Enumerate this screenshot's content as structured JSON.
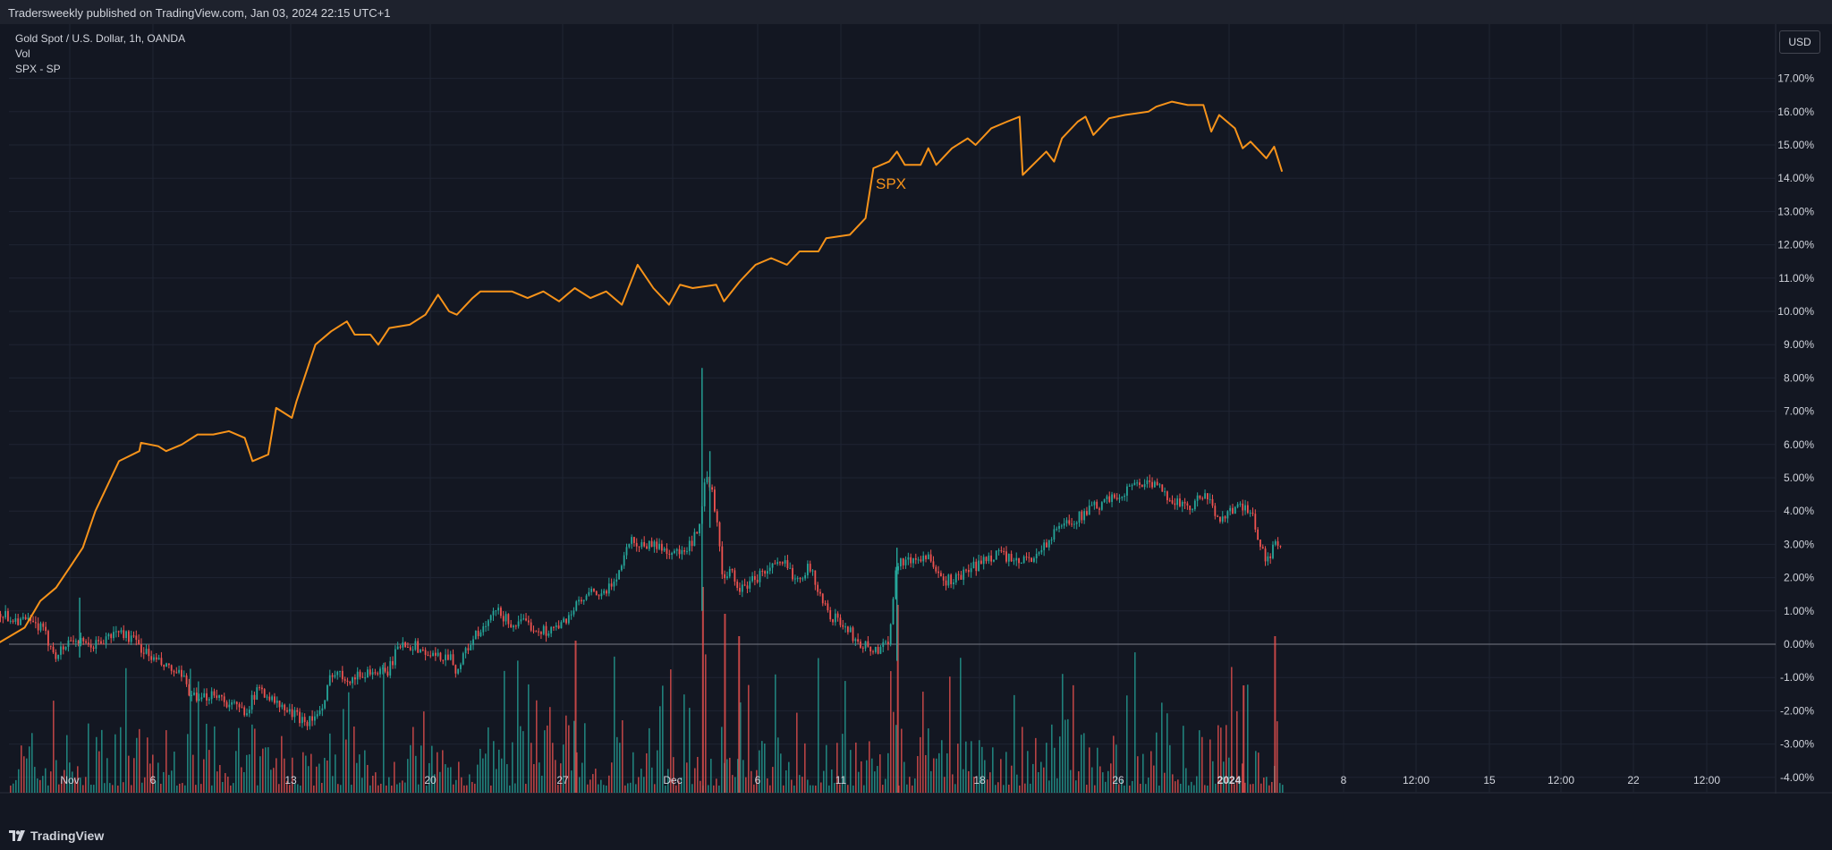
{
  "header": {
    "published": "Tradersweekly published on TradingView.com, Jan 03, 2024 22:15 UTC+1"
  },
  "legend": {
    "symbol": "Gold Spot / U.S. Dollar, 1h, OANDA",
    "volume": "Vol",
    "compare": "SPX - SP"
  },
  "currency_button": "USD",
  "brand": {
    "name": "TradingView",
    "icon": "tradingview-logo-icon"
  },
  "colors": {
    "background": "#131722",
    "spx": "#f7931a",
    "up": "#26a69a",
    "down": "#ef5350",
    "grid": "#1f2433",
    "axis_text": "#d1d4dc"
  },
  "chart_data": {
    "type": "line",
    "title": "Gold Spot / U.S. Dollar, 1h, OANDA",
    "xlabel": "",
    "ylabel": "",
    "ylim": [
      -4.5,
      17.5
    ],
    "y_ticks": [
      "17.00%",
      "16.00%",
      "15.00%",
      "14.00%",
      "13.00%",
      "12.00%",
      "11.00%",
      "10.00%",
      "9.00%",
      "8.00%",
      "7.00%",
      "6.00%",
      "5.00%",
      "4.00%",
      "3.00%",
      "2.00%",
      "1.00%",
      "0.00%",
      "-1.00%",
      "-2.00%",
      "-3.00%",
      "-4.00%"
    ],
    "x_ticks": [
      "Nov",
      "6",
      "13",
      "20",
      "27",
      "Dec",
      "6",
      "11",
      "18",
      "26",
      "2024",
      "8",
      "12:00",
      "15",
      "12:00",
      "22",
      "12:00"
    ],
    "annotations": [
      "SPX"
    ],
    "series": [
      {
        "name": "SPX",
        "style": "line",
        "points": [
          [
            -1.5,
            -0.2
          ],
          [
            1.0,
            0.5
          ],
          [
            2.0,
            1.3
          ],
          [
            3.0,
            1.7
          ],
          [
            4.0,
            2.4
          ],
          [
            4.7,
            2.9
          ],
          [
            5.5,
            4.0
          ],
          [
            7.0,
            5.5
          ],
          [
            8.3,
            5.8
          ],
          [
            8.4,
            6.05
          ],
          [
            9.5,
            5.95
          ],
          [
            10.0,
            5.8
          ],
          [
            11.0,
            6.0
          ],
          [
            12.0,
            6.3
          ],
          [
            13.0,
            6.3
          ],
          [
            14.0,
            6.4
          ],
          [
            15.0,
            6.2
          ],
          [
            15.5,
            5.5
          ],
          [
            16.5,
            5.7
          ],
          [
            17.0,
            7.1
          ],
          [
            18.0,
            6.8
          ],
          [
            18.3,
            7.3
          ],
          [
            19.5,
            9.0
          ],
          [
            20.5,
            9.4
          ],
          [
            21.5,
            9.7
          ],
          [
            22.0,
            9.3
          ],
          [
            23.0,
            9.3
          ],
          [
            23.5,
            9.0
          ],
          [
            24.2,
            9.5
          ],
          [
            25.5,
            9.6
          ],
          [
            26.5,
            9.9
          ],
          [
            27.3,
            10.5
          ],
          [
            28.0,
            10.0
          ],
          [
            28.5,
            9.9
          ],
          [
            29.5,
            10.4
          ],
          [
            30.0,
            10.6
          ],
          [
            31.0,
            10.6
          ],
          [
            32.0,
            10.6
          ],
          [
            33.0,
            10.4
          ],
          [
            34.0,
            10.6
          ],
          [
            35.0,
            10.3
          ],
          [
            36.0,
            10.7
          ],
          [
            37.0,
            10.4
          ],
          [
            38.0,
            10.6
          ],
          [
            39.0,
            10.2
          ],
          [
            40.0,
            11.4
          ],
          [
            41.0,
            10.7
          ],
          [
            42.0,
            10.2
          ],
          [
            42.7,
            10.8
          ],
          [
            43.5,
            10.7
          ],
          [
            45.0,
            10.8
          ],
          [
            45.5,
            10.3
          ],
          [
            46.5,
            10.9
          ],
          [
            47.5,
            11.4
          ],
          [
            48.5,
            11.6
          ],
          [
            49.5,
            11.4
          ],
          [
            50.3,
            11.8
          ],
          [
            51.5,
            11.8
          ],
          [
            52.0,
            12.2
          ],
          [
            53.5,
            12.3
          ],
          [
            54.5,
            12.8
          ],
          [
            55.0,
            14.3
          ],
          [
            56.0,
            14.5
          ],
          [
            56.5,
            14.8
          ],
          [
            57.0,
            14.4
          ],
          [
            58.0,
            14.4
          ],
          [
            58.5,
            14.9
          ],
          [
            59.0,
            14.4
          ],
          [
            60.0,
            14.9
          ],
          [
            61.0,
            15.2
          ],
          [
            61.5,
            15.0
          ],
          [
            62.5,
            15.5
          ],
          [
            63.5,
            15.7
          ],
          [
            64.3,
            15.85
          ],
          [
            64.5,
            14.1
          ],
          [
            66.0,
            14.8
          ],
          [
            66.5,
            14.5
          ],
          [
            67.0,
            15.2
          ],
          [
            68.0,
            15.7
          ],
          [
            68.5,
            15.85
          ],
          [
            69.0,
            15.3
          ],
          [
            70.0,
            15.8
          ],
          [
            71.0,
            15.9
          ],
          [
            72.5,
            16.0
          ],
          [
            73.0,
            16.15
          ],
          [
            74.0,
            16.3
          ],
          [
            75.0,
            16.2
          ],
          [
            76.0,
            16.2
          ],
          [
            76.5,
            15.4
          ],
          [
            77.0,
            15.9
          ],
          [
            78.0,
            15.5
          ],
          [
            78.5,
            14.9
          ],
          [
            79.0,
            15.1
          ],
          [
            80.0,
            14.6
          ],
          [
            80.5,
            14.95
          ],
          [
            81.0,
            14.2
          ]
        ]
      },
      {
        "name": "Gold",
        "style": "candles",
        "close_path": [
          [
            -1.5,
            1.2
          ],
          [
            0.0,
            0.8
          ],
          [
            1.0,
            0.7
          ],
          [
            2.0,
            0.5
          ],
          [
            2.5,
            0.1
          ],
          [
            3.0,
            -0.3
          ],
          [
            3.5,
            -0.1
          ],
          [
            4.0,
            0.2
          ],
          [
            5.0,
            -0.1
          ],
          [
            6.0,
            0.1
          ],
          [
            7.0,
            0.4
          ],
          [
            8.0,
            0.1
          ],
          [
            9.0,
            -0.4
          ],
          [
            10.0,
            -0.7
          ],
          [
            11.0,
            -1.0
          ],
          [
            12.0,
            -1.8
          ],
          [
            13.0,
            -1.4
          ],
          [
            14.0,
            -1.8
          ],
          [
            15.0,
            -2.0
          ],
          [
            16.0,
            -1.3
          ],
          [
            17.0,
            -1.8
          ],
          [
            18.0,
            -2.1
          ],
          [
            19.0,
            -2.3
          ],
          [
            20.0,
            -2.0
          ],
          [
            20.5,
            -0.8
          ],
          [
            21.5,
            -1.0
          ],
          [
            22.0,
            -1.0
          ],
          [
            23.0,
            -0.8
          ],
          [
            24.0,
            -0.9
          ],
          [
            25.0,
            0.1
          ],
          [
            26.0,
            -0.1
          ],
          [
            27.0,
            -0.4
          ],
          [
            28.0,
            -0.3
          ],
          [
            28.5,
            -0.8
          ],
          [
            29.5,
            0.2
          ],
          [
            30.0,
            0.3
          ],
          [
            31.0,
            1.0
          ],
          [
            32.0,
            0.6
          ],
          [
            33.0,
            0.6
          ],
          [
            34.0,
            0.4
          ],
          [
            35.0,
            0.5
          ],
          [
            36.0,
            1.1
          ],
          [
            37.0,
            1.5
          ],
          [
            38.0,
            1.5
          ],
          [
            39.0,
            2.4
          ],
          [
            39.5,
            3.2
          ],
          [
            40.0,
            3.0
          ],
          [
            41.0,
            3.0
          ],
          [
            42.0,
            2.8
          ],
          [
            43.0,
            2.7
          ],
          [
            44.0,
            3.5
          ],
          [
            44.3,
            5.0
          ],
          [
            44.8,
            4.5
          ],
          [
            45.5,
            1.8
          ],
          [
            46.0,
            2.2
          ],
          [
            46.5,
            1.6
          ],
          [
            47.5,
            2.0
          ],
          [
            48.5,
            2.3
          ],
          [
            49.5,
            2.4
          ],
          [
            50.0,
            2.0
          ],
          [
            51.0,
            2.3
          ],
          [
            52.0,
            1.0
          ],
          [
            53.0,
            0.6
          ],
          [
            54.0,
            0.1
          ],
          [
            55.0,
            -0.2
          ],
          [
            55.5,
            -0.1
          ],
          [
            56.0,
            0.2
          ],
          [
            56.5,
            2.5
          ],
          [
            57.5,
            2.5
          ],
          [
            58.5,
            2.7
          ],
          [
            59.0,
            2.0
          ],
          [
            60.0,
            1.9
          ],
          [
            61.0,
            2.2
          ],
          [
            62.0,
            2.5
          ],
          [
            63.0,
            2.8
          ],
          [
            64.0,
            2.4
          ],
          [
            65.0,
            2.6
          ],
          [
            66.0,
            3.0
          ],
          [
            67.0,
            3.6
          ],
          [
            68.0,
            3.8
          ],
          [
            69.0,
            4.1
          ],
          [
            70.0,
            4.3
          ],
          [
            71.0,
            4.6
          ],
          [
            72.0,
            4.9
          ],
          [
            73.0,
            4.7
          ],
          [
            74.0,
            4.4
          ],
          [
            75.0,
            4.0
          ],
          [
            76.0,
            4.5
          ],
          [
            77.0,
            3.8
          ],
          [
            78.0,
            4.1
          ],
          [
            79.0,
            4.0
          ],
          [
            79.5,
            3.2
          ],
          [
            80.0,
            2.4
          ],
          [
            80.5,
            3.0
          ],
          [
            81.0,
            2.9
          ]
        ],
        "spikes": [
          [
            4.5,
            -0.4,
            1.4
          ],
          [
            44.1,
            1.0,
            8.3
          ],
          [
            44.6,
            3.5,
            5.8
          ],
          [
            56.5,
            -0.5,
            2.9
          ]
        ]
      }
    ]
  }
}
